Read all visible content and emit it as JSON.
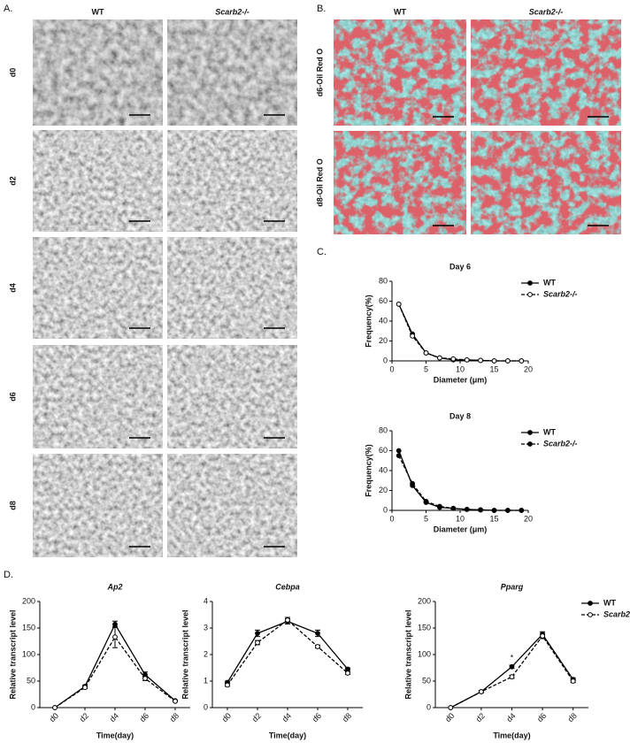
{
  "panels": {
    "a": "A.",
    "b": "B.",
    "c": "C.",
    "d": "D."
  },
  "panel_a": {
    "columns": [
      "WT",
      "Scarb2-/-"
    ],
    "rows": [
      "d0",
      "d2",
      "d4",
      "d6",
      "d8"
    ]
  },
  "panel_b": {
    "columns": [
      "WT",
      "Scarb2-/-"
    ],
    "rows": [
      "d6-Oil Red O",
      "d8-Oil Red O"
    ]
  },
  "chart_data": [
    {
      "type": "line",
      "title": "Day 6",
      "x_label": "Diameter (μm)",
      "y_label": "Frequency(%)",
      "x": [
        1,
        3,
        5,
        7,
        9,
        11,
        13,
        15,
        17,
        19
      ],
      "series": [
        {
          "name": "WT",
          "color": "#000000",
          "line_style": "solid",
          "marker": "filled",
          "values": [
            57,
            27,
            8,
            3,
            1,
            1,
            0.5,
            0,
            0,
            0
          ]
        },
        {
          "name": "Scarb2-/-",
          "color": "#000000",
          "line_style": "dashed",
          "marker": "open",
          "values": [
            57,
            25,
            8,
            3,
            2,
            1,
            0.5,
            0,
            0,
            0
          ]
        }
      ],
      "xlim": [
        0,
        20
      ],
      "xticks": [
        0,
        5,
        10,
        15,
        20
      ],
      "ylim": [
        0,
        80
      ],
      "yticks": [
        0,
        20,
        40,
        60,
        80
      ],
      "legend": "upper right"
    },
    {
      "type": "line",
      "title": "Day 8",
      "x_label": "Diameter (μm)",
      "y_label": "Frequency(%)",
      "x": [
        1,
        3,
        5,
        7,
        9,
        11,
        13,
        15,
        17,
        19
      ],
      "series": [
        {
          "name": "WT",
          "color": "#000000",
          "line_style": "solid",
          "marker": "filled",
          "values": [
            60,
            25,
            8,
            3,
            2,
            1,
            0.5,
            0,
            0,
            0
          ]
        },
        {
          "name": "Scarb2-/-",
          "color": "#000000",
          "line_style": "dashed",
          "marker": "filled",
          "values": [
            55,
            27,
            9,
            4,
            2,
            1,
            0.5,
            0,
            0,
            0
          ]
        }
      ],
      "xlim": [
        0,
        20
      ],
      "xticks": [
        0,
        5,
        10,
        15,
        20
      ],
      "ylim": [
        0,
        80
      ],
      "yticks": [
        0,
        20,
        40,
        60,
        80
      ],
      "legend": "upper right"
    },
    {
      "type": "line",
      "title": "Ap2",
      "x_label": "Time(day)",
      "y_label": "Relative transcript level",
      "categories": [
        "d0",
        "d2",
        "d4",
        "d6",
        "d8"
      ],
      "series": [
        {
          "name": "WT",
          "color": "#000000",
          "line_style": "solid",
          "marker": "filled",
          "values": [
            0,
            40,
            157,
            62,
            13
          ],
          "errors": [
            0,
            2,
            6,
            5,
            1
          ]
        },
        {
          "name": "Scarb2-/-",
          "color": "#000000",
          "line_style": "dashed",
          "marker": "open",
          "values": [
            0,
            38,
            133,
            55,
            12
          ],
          "errors": [
            0,
            2,
            20,
            4,
            1
          ]
        }
      ],
      "ylim": [
        0,
        200
      ],
      "yticks": [
        0,
        50,
        100,
        150,
        200
      ]
    },
    {
      "type": "line",
      "title": "Cebpa",
      "x_label": "Time(day)",
      "y_label": "Relative transcript level",
      "categories": [
        "d0",
        "d2",
        "d4",
        "d6",
        "d8"
      ],
      "series": [
        {
          "name": "WT",
          "color": "#000000",
          "line_style": "solid",
          "marker": "filled",
          "values": [
            0.95,
            2.8,
            3.25,
            2.8,
            1.45
          ],
          "errors": [
            0.05,
            0.12,
            0.1,
            0.12,
            0.05
          ]
        },
        {
          "name": "Scarb2-/-",
          "color": "#000000",
          "line_style": "dashed",
          "marker": "open",
          "values": [
            0.85,
            2.45,
            3.3,
            2.3,
            1.3
          ],
          "errors": [
            0.05,
            0.08,
            0.1,
            0.06,
            0.05
          ]
        }
      ],
      "ylim": [
        0,
        4
      ],
      "yticks": [
        0,
        1,
        2,
        3,
        4
      ]
    },
    {
      "type": "line",
      "title": "Pparg",
      "x_label": "Time(day)",
      "y_label": "Relative transcript level",
      "categories": [
        "d0",
        "d2",
        "d4",
        "d6",
        "d8"
      ],
      "series": [
        {
          "name": "WT",
          "color": "#000000",
          "line_style": "solid",
          "marker": "filled",
          "values": [
            0,
            30,
            77,
            138,
            53
          ],
          "errors": [
            0,
            2,
            3,
            5,
            3
          ]
        },
        {
          "name": "Scarb2-/-",
          "color": "#000000",
          "line_style": "dashed",
          "marker": "open",
          "values": [
            0,
            30,
            58,
            135,
            50
          ],
          "errors": [
            0,
            2,
            3,
            5,
            3
          ]
        }
      ],
      "ylim": [
        0,
        200
      ],
      "yticks": [
        0,
        50,
        100,
        150,
        200
      ],
      "legend": "upper right",
      "annotations": [
        {
          "text": "*",
          "category": "d4"
        }
      ]
    }
  ]
}
